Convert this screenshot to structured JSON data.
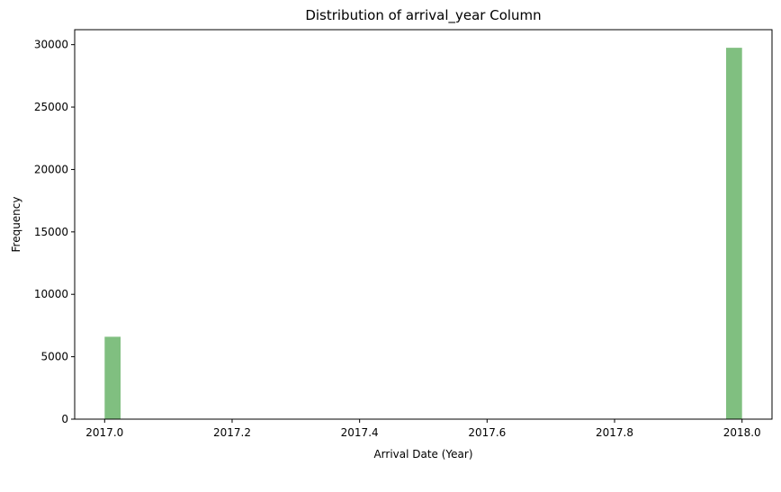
{
  "chart_data": {
    "type": "bar",
    "title": "Distribution of arrival_year Column",
    "xlabel": "Arrival Date (Year)",
    "ylabel": "Frequency",
    "xlim": [
      1996.95,
      2018.05
    ],
    "ylim": [
      0,
      31200
    ],
    "xticks": [
      {
        "value": 2017.0,
        "label": "2017.0"
      },
      {
        "value": 2017.2,
        "label": "2017.2"
      },
      {
        "value": 2017.4,
        "label": "2017.4"
      },
      {
        "value": 2017.6,
        "label": "2017.6"
      },
      {
        "value": 2017.8,
        "label": "2017.8"
      },
      {
        "value": 2018.0,
        "label": "2018.0"
      }
    ],
    "yticks": [
      {
        "value": 0,
        "label": "0"
      },
      {
        "value": 5000,
        "label": "5000"
      },
      {
        "value": 10000,
        "label": "10000"
      },
      {
        "value": 15000,
        "label": "15000"
      },
      {
        "value": 20000,
        "label": "20000"
      },
      {
        "value": 25000,
        "label": "25000"
      },
      {
        "value": 30000,
        "label": "30000"
      }
    ],
    "bins": [
      {
        "x0": 2017.0,
        "x1": 2017.025,
        "count": 6600
      },
      {
        "x0": 2017.975,
        "x1": 2018.0,
        "count": 29750
      }
    ],
    "bar_color": "#80bf80",
    "grid": false
  }
}
